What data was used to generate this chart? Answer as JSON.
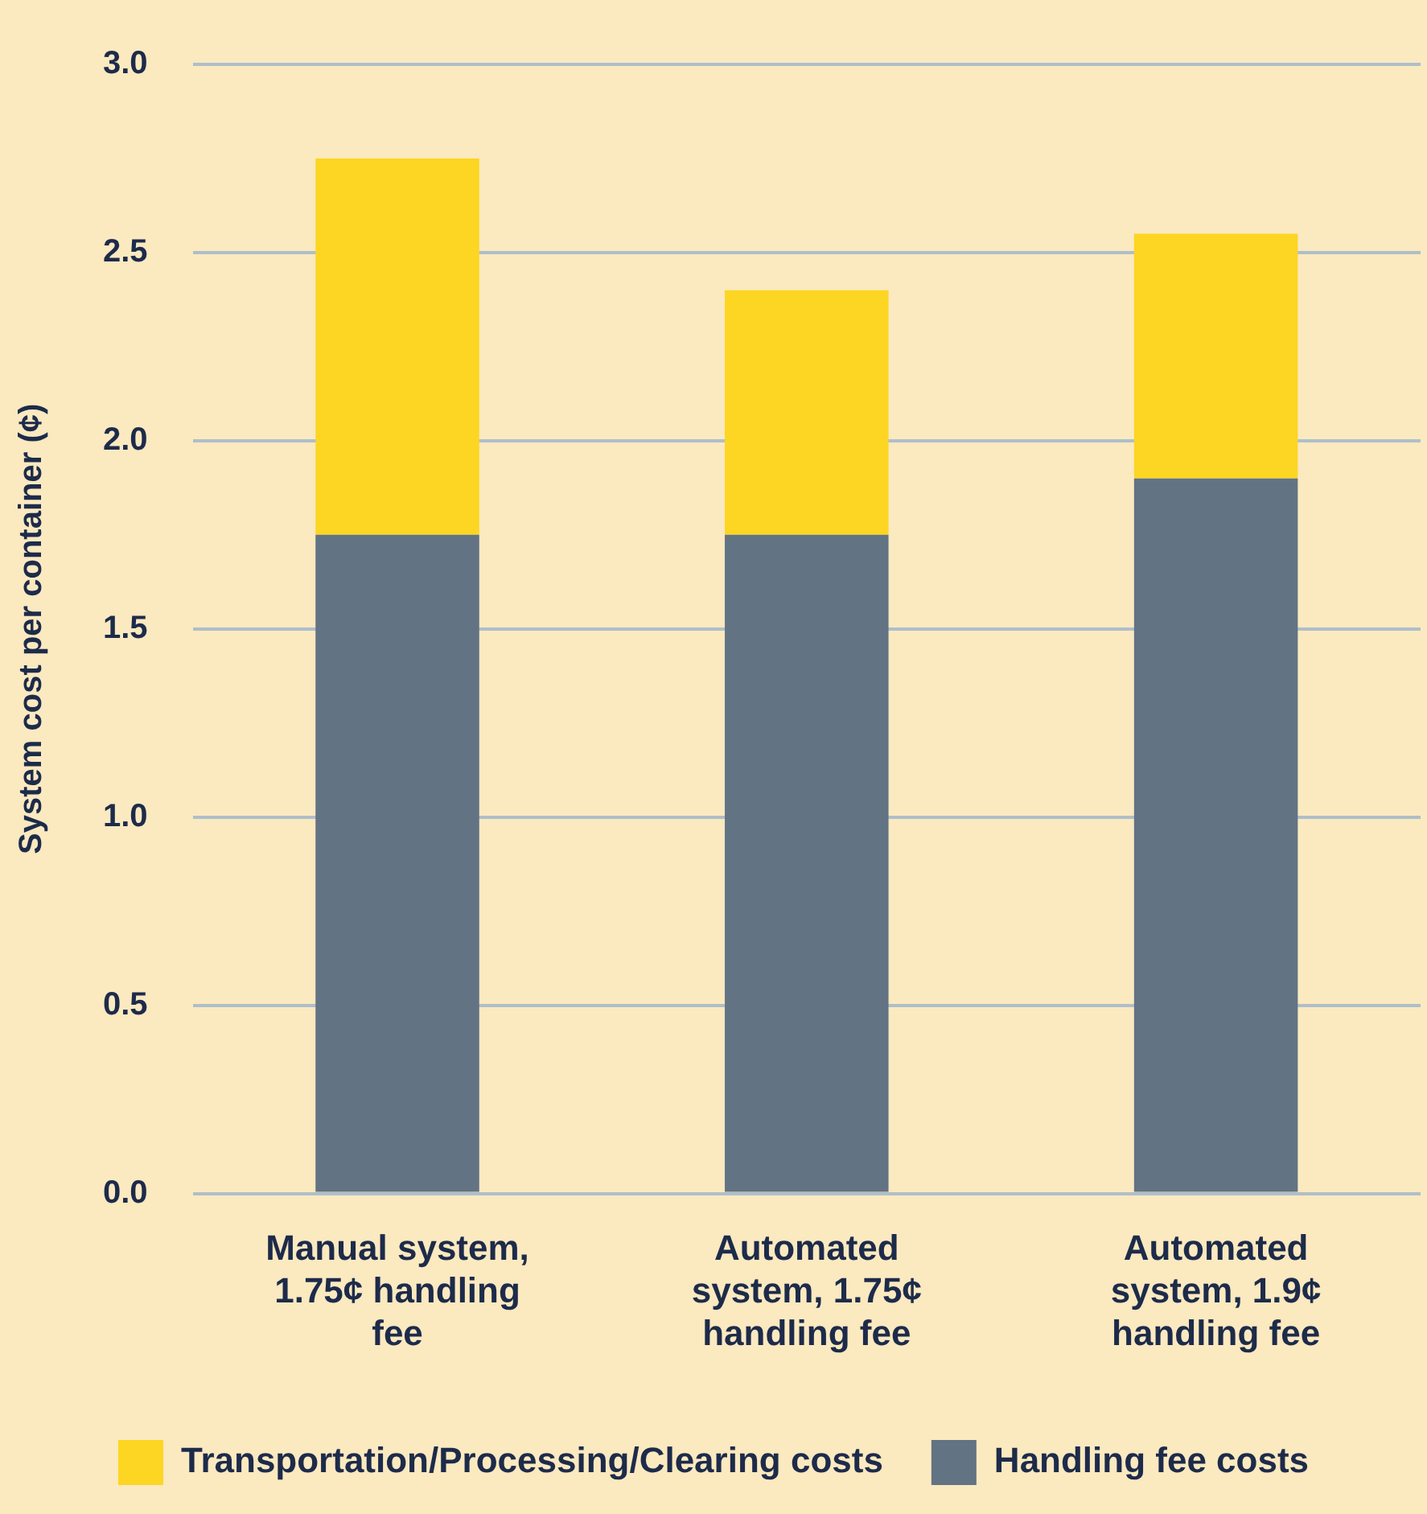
{
  "chart_data": {
    "type": "bar",
    "ylabel": "System cost per container (¢)",
    "categories": [
      "Manual system, 1.75¢ handling fee",
      "Automated system, 1.75¢ handling fee",
      "Automated system, 1.9¢ handling fee"
    ],
    "series": [
      {
        "name": "Handling fee costs",
        "color": "#627384",
        "values": [
          1.75,
          1.75,
          1.9
        ]
      },
      {
        "name": "Transportation/Processing/Clearing costs",
        "color": "#fdd523",
        "values": [
          1.0,
          0.65,
          0.65
        ]
      }
    ],
    "stacked": true,
    "ylim": [
      0,
      3
    ],
    "yticks": [
      {
        "value": 0,
        "label": "0.0"
      },
      {
        "value": 0.5,
        "label": "0.5"
      },
      {
        "value": 1,
        "label": "1.0"
      },
      {
        "value": 1.5,
        "label": "1.5"
      },
      {
        "value": 2,
        "label": "2.0"
      },
      {
        "value": 2.5,
        "label": "2.5"
      },
      {
        "value": 3,
        "label": "3.0"
      }
    ],
    "grid": "y",
    "legend": "bottom"
  }
}
